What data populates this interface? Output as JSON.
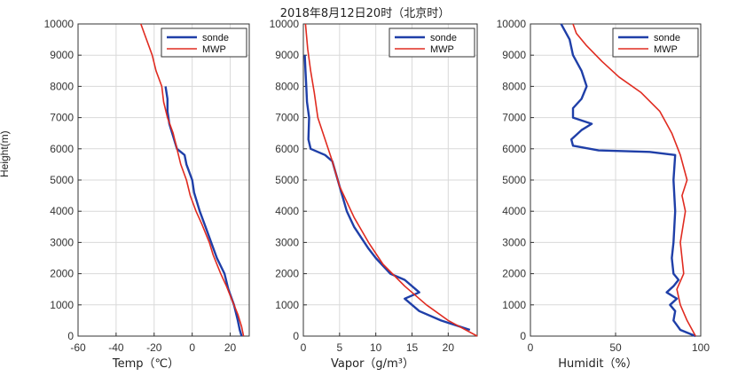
{
  "title": "2018年8月12日20时（北京时）",
  "shared_ylabel": "Height(m)",
  "colors": {
    "sonde": "#1f3fa8",
    "mwp": "#e02b20",
    "axis": "#333333",
    "grid": "#d9d9d9"
  },
  "chart_data": [
    {
      "type": "line",
      "xlabel": "Temp（℃）",
      "xlim": [
        -60,
        30
      ],
      "xticks": [
        -60,
        -40,
        -20,
        0,
        20
      ],
      "ylim": [
        0,
        10000
      ],
      "yticks": [
        0,
        1000,
        2000,
        3000,
        4000,
        5000,
        6000,
        7000,
        8000,
        9000,
        10000
      ],
      "grid": true,
      "legend": "top-right",
      "series": [
        {
          "name": "sonde",
          "points": [
            [
              26,
              0
            ],
            [
              25,
              200
            ],
            [
              24,
              500
            ],
            [
              22,
              1000
            ],
            [
              19,
              1500
            ],
            [
              17,
              2000
            ],
            [
              13,
              2500
            ],
            [
              10,
              3000
            ],
            [
              7,
              3500
            ],
            [
              4,
              4000
            ],
            [
              1,
              4600
            ],
            [
              0,
              5000
            ],
            [
              -3,
              5500
            ],
            [
              -4,
              5800
            ],
            [
              -8,
              6000
            ],
            [
              -10,
              6400
            ],
            [
              -12,
              6800
            ],
            [
              -13,
              7200
            ],
            [
              -13,
              7600
            ],
            [
              -14,
              8000
            ]
          ]
        },
        {
          "name": "MWP",
          "points": [
            [
              27,
              0
            ],
            [
              26,
              300
            ],
            [
              24,
              700
            ],
            [
              22,
              1000
            ],
            [
              18,
              1600
            ],
            [
              15,
              2000
            ],
            [
              11,
              2600
            ],
            [
              9,
              3000
            ],
            [
              5,
              3600
            ],
            [
              2,
              4000
            ],
            [
              -1,
              4500
            ],
            [
              -3,
              5000
            ],
            [
              -6,
              5500
            ],
            [
              -8,
              6000
            ],
            [
              -10,
              6500
            ],
            [
              -13,
              7000
            ],
            [
              -15,
              7500
            ],
            [
              -16,
              8000
            ],
            [
              -19,
              8500
            ],
            [
              -21,
              9000
            ],
            [
              -24,
              9500
            ],
            [
              -27,
              10000
            ]
          ]
        }
      ]
    },
    {
      "type": "line",
      "xlabel": "Vapor（g/m³）",
      "xlim": [
        0,
        24
      ],
      "xticks": [
        0,
        5,
        10,
        15,
        20
      ],
      "ylim": [
        0,
        10000
      ],
      "yticks": [
        0,
        1000,
        2000,
        3000,
        4000,
        5000,
        6000,
        7000,
        8000,
        9000,
        10000
      ],
      "grid": true,
      "legend": "top-right",
      "series": [
        {
          "name": "sonde",
          "points": [
            [
              23,
              200
            ],
            [
              19,
              500
            ],
            [
              16,
              800
            ],
            [
              15,
              1000
            ],
            [
              14,
              1200
            ],
            [
              16,
              1400
            ],
            [
              14,
              1800
            ],
            [
              12,
              2000
            ],
            [
              10,
              2500
            ],
            [
              9,
              2800
            ],
            [
              7,
              3500
            ],
            [
              6,
              4000
            ],
            [
              5,
              4800
            ],
            [
              4,
              5600
            ],
            [
              3,
              5800
            ],
            [
              1,
              6000
            ],
            [
              0.7,
              6300
            ],
            [
              0.8,
              7000
            ],
            [
              0.5,
              7500
            ],
            [
              0.4,
              8000
            ],
            [
              0.3,
              8500
            ],
            [
              0.2,
              9000
            ]
          ]
        },
        {
          "name": "MWP",
          "points": [
            [
              24,
              0
            ],
            [
              20,
              500
            ],
            [
              17,
              1000
            ],
            [
              14,
              1600
            ],
            [
              11,
              2300
            ],
            [
              9,
              3000
            ],
            [
              7,
              3800
            ],
            [
              5,
              4800
            ],
            [
              4,
              5600
            ],
            [
              3,
              6300
            ],
            [
              2,
              7000
            ],
            [
              1.5,
              7800
            ],
            [
              1,
              8500
            ],
            [
              0.6,
              9200
            ],
            [
              0.3,
              10000
            ]
          ]
        }
      ]
    },
    {
      "type": "line",
      "xlabel": "Humidit（%）",
      "xlim": [
        0,
        100
      ],
      "xticks": [
        0,
        50,
        100
      ],
      "ylim": [
        0,
        10000
      ],
      "yticks": [
        0,
        1000,
        2000,
        3000,
        4000,
        5000,
        6000,
        7000,
        8000,
        9000,
        10000
      ],
      "grid": true,
      "legend": "top-right",
      "series": [
        {
          "name": "sonde",
          "points": [
            [
              97,
              0
            ],
            [
              88,
              200
            ],
            [
              84,
              500
            ],
            [
              85,
              800
            ],
            [
              82,
              1000
            ],
            [
              86,
              1200
            ],
            [
              80,
              1400
            ],
            [
              84,
              1600
            ],
            [
              87,
              1800
            ],
            [
              84,
              2000
            ],
            [
              83,
              2500
            ],
            [
              84,
              3000
            ],
            [
              85,
              4000
            ],
            [
              84,
              5000
            ],
            [
              85,
              5800
            ],
            [
              70,
              5900
            ],
            [
              40,
              5950
            ],
            [
              25,
              6100
            ],
            [
              24,
              6300
            ],
            [
              30,
              6600
            ],
            [
              36,
              6800
            ],
            [
              25,
              7000
            ],
            [
              25,
              7300
            ],
            [
              30,
              7600
            ],
            [
              33,
              8000
            ],
            [
              30,
              8500
            ],
            [
              25,
              9000
            ],
            [
              23,
              9500
            ],
            [
              18,
              10000
            ]
          ]
        },
        {
          "name": "MWP",
          "points": [
            [
              97,
              0
            ],
            [
              92,
              500
            ],
            [
              88,
              1000
            ],
            [
              86,
              1500
            ],
            [
              90,
              2000
            ],
            [
              88,
              3000
            ],
            [
              91,
              4000
            ],
            [
              89,
              4500
            ],
            [
              92,
              5000
            ],
            [
              88,
              5800
            ],
            [
              83,
              6500
            ],
            [
              76,
              7200
            ],
            [
              65,
              7800
            ],
            [
              52,
              8300
            ],
            [
              42,
              8800
            ],
            [
              33,
              9300
            ],
            [
              27,
              9700
            ],
            [
              25,
              10000
            ]
          ]
        }
      ]
    }
  ]
}
